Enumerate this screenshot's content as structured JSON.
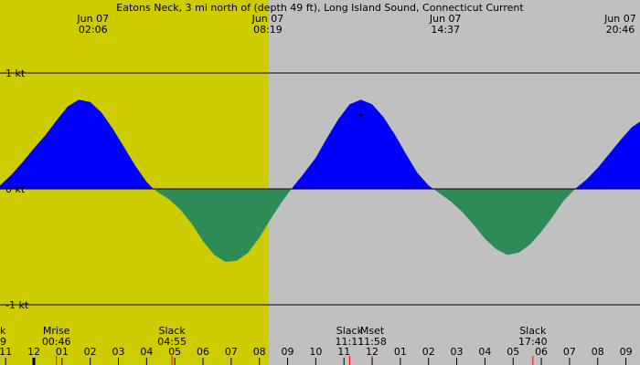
{
  "chart_data": {
    "type": "area",
    "title": "Eatons Neck, 3 mi north of (depth 49 ft), Long Island Sound, Connecticut Current",
    "ylim": [
      -1,
      1
    ],
    "y_ticks": [
      {
        "value": 1,
        "label": "1 kt"
      },
      {
        "value": 0,
        "label": "0 kt"
      },
      {
        "value": -1,
        "label": "-1 kt"
      }
    ],
    "colors": {
      "background": "#c0c0c0",
      "daylight": "#cccc00",
      "flood": "#0000ff",
      "ebb": "#2e8b57",
      "gridline": "#000000",
      "moon_tick": "#ff0000"
    },
    "daylight_hours": [
      5.33,
      20.33
    ],
    "hour_range": [
      10.8,
      33.5
    ],
    "current_curve": {
      "description_free_points": true,
      "points": [
        [
          10.8,
          0.03
        ],
        [
          11.2,
          0.12
        ],
        [
          11.6,
          0.23
        ],
        [
          12.0,
          0.35
        ],
        [
          12.4,
          0.46
        ],
        [
          12.8,
          0.59
        ],
        [
          13.2,
          0.71
        ],
        [
          13.6,
          0.77
        ],
        [
          14.0,
          0.75
        ],
        [
          14.4,
          0.66
        ],
        [
          14.8,
          0.52
        ],
        [
          15.2,
          0.36
        ],
        [
          15.6,
          0.2
        ],
        [
          16.0,
          0.06
        ],
        [
          16.2,
          0.01
        ],
        [
          16.4,
          -0.03
        ],
        [
          16.8,
          -0.09
        ],
        [
          17.2,
          -0.18
        ],
        [
          17.6,
          -0.3
        ],
        [
          18.0,
          -0.45
        ],
        [
          18.4,
          -0.57
        ],
        [
          18.8,
          -0.63
        ],
        [
          19.2,
          -0.62
        ],
        [
          19.6,
          -0.55
        ],
        [
          20.0,
          -0.42
        ],
        [
          20.4,
          -0.26
        ],
        [
          20.8,
          -0.11
        ],
        [
          21.2,
          0.02
        ],
        [
          21.6,
          0.14
        ],
        [
          22.0,
          0.27
        ],
        [
          22.4,
          0.44
        ],
        [
          22.8,
          0.6
        ],
        [
          23.2,
          0.73
        ],
        [
          23.6,
          0.77
        ],
        [
          24.0,
          0.73
        ],
        [
          24.4,
          0.62
        ],
        [
          24.8,
          0.47
        ],
        [
          25.2,
          0.3
        ],
        [
          25.6,
          0.14
        ],
        [
          26.0,
          0.03
        ],
        [
          26.4,
          -0.04
        ],
        [
          26.8,
          -0.11
        ],
        [
          27.2,
          -0.2
        ],
        [
          27.6,
          -0.31
        ],
        [
          28.0,
          -0.43
        ],
        [
          28.4,
          -0.52
        ],
        [
          28.8,
          -0.57
        ],
        [
          29.2,
          -0.55
        ],
        [
          29.6,
          -0.48
        ],
        [
          30.0,
          -0.37
        ],
        [
          30.4,
          -0.24
        ],
        [
          30.8,
          -0.1
        ],
        [
          31.2,
          0.0
        ],
        [
          31.6,
          0.08
        ],
        [
          32.0,
          0.18
        ],
        [
          32.4,
          0.3
        ],
        [
          32.8,
          0.42
        ],
        [
          33.2,
          0.53
        ],
        [
          33.5,
          0.58
        ]
      ]
    },
    "points": [
      [
        13.6,
        0.77
      ],
      [
        18.95,
        -0.63
      ],
      [
        23.7,
        0.77
      ],
      [
        28.8,
        -0.57
      ]
    ],
    "top_events": [
      {
        "hour": 14.1,
        "date": "Jun 07",
        "time": "02:06"
      },
      {
        "hour": 20.3,
        "date": "Jun 07",
        "time": "08:19"
      },
      {
        "hour": 26.6,
        "date": "Jun 07",
        "time": "14:37"
      },
      {
        "hour": 32.8,
        "date": "Jun 07",
        "time": "20:46"
      }
    ],
    "bottom_events": [
      {
        "hour": 10.8,
        "label": "k",
        "time": "9"
      },
      {
        "hour": 12.8,
        "label": "Mrise",
        "time": "00:46"
      },
      {
        "hour": 16.9,
        "label": "Slack",
        "time": "04:55"
      },
      {
        "hour": 23.2,
        "label": "Slack",
        "time": "11:11"
      },
      {
        "hour": 24.0,
        "label": "Mset",
        "time": "11:58"
      },
      {
        "hour": 29.7,
        "label": "Slack",
        "time": "17:40"
      }
    ],
    "hour_ticks": [
      {
        "hour": 11,
        "label": "11"
      },
      {
        "hour": 12,
        "label": "12"
      },
      {
        "hour": 13,
        "label": "01"
      },
      {
        "hour": 14,
        "label": "02"
      },
      {
        "hour": 15,
        "label": "03"
      },
      {
        "hour": 16,
        "label": "04"
      },
      {
        "hour": 17,
        "label": "05"
      },
      {
        "hour": 18,
        "label": "06"
      },
      {
        "hour": 19,
        "label": "07"
      },
      {
        "hour": 20,
        "label": "08"
      },
      {
        "hour": 21,
        "label": "09"
      },
      {
        "hour": 22,
        "label": "10"
      },
      {
        "hour": 23,
        "label": "11"
      },
      {
        "hour": 24,
        "label": "12"
      },
      {
        "hour": 25,
        "label": "01"
      },
      {
        "hour": 26,
        "label": "02"
      },
      {
        "hour": 27,
        "label": "03"
      },
      {
        "hour": 28,
        "label": "04"
      },
      {
        "hour": 29,
        "label": "05"
      },
      {
        "hour": 30,
        "label": "06"
      },
      {
        "hour": 31,
        "label": "07"
      },
      {
        "hour": 32,
        "label": "08"
      },
      {
        "hour": 33,
        "label": "09"
      }
    ],
    "marker": {
      "hour": 23.6,
      "value": 0.64,
      "symbol": "+"
    }
  }
}
